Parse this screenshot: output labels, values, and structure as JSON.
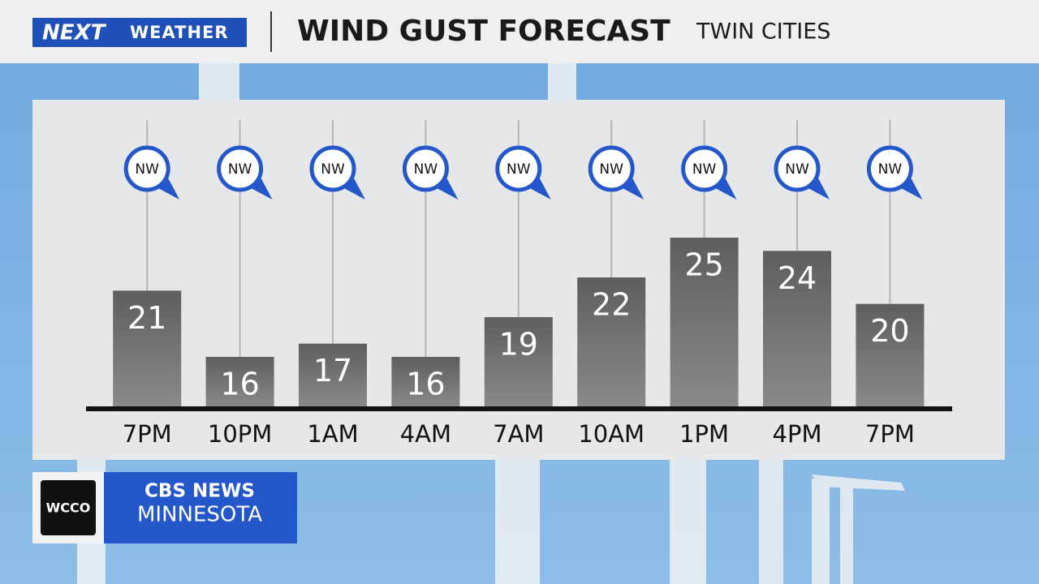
{
  "header": {
    "logo_main": "NEXT",
    "logo_sub": "WEATHER",
    "title": "WIND GUST FORECAST",
    "subtitle": "TWIN CITIES"
  },
  "chart_data": {
    "type": "bar",
    "categories": [
      "7PM",
      "10PM",
      "1AM",
      "4AM",
      "7AM",
      "10AM",
      "1PM",
      "4PM",
      "7PM"
    ],
    "values": [
      21,
      16,
      17,
      16,
      19,
      22,
      25,
      24,
      20
    ],
    "directions": [
      "NW",
      "NW",
      "NW",
      "NW",
      "NW",
      "NW",
      "NW",
      "NW",
      "NW"
    ],
    "color": "#6b6b6b"
  },
  "footer": {
    "station": "WCCO",
    "network": "CBS NEWS",
    "region": "MINNESOTA"
  }
}
